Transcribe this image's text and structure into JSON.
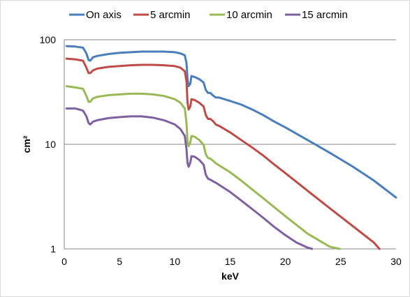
{
  "chart_data": {
    "type": "line",
    "title": "",
    "xlabel": "keV",
    "ylabel": "cm²",
    "xlim": [
      0,
      30
    ],
    "ylim": [
      1,
      100
    ],
    "y_scale": "log",
    "grid": "horizontal major only",
    "legend_position": "top",
    "x_ticks": [
      "0",
      "5",
      "10",
      "15",
      "20",
      "25",
      "30"
    ],
    "y_ticks": [
      "1",
      "10",
      "100"
    ],
    "series": [
      {
        "name": "On axis",
        "color": "#4a7ebb",
        "x": [
          0.2,
          1.0,
          1.7,
          2.0,
          2.2,
          2.35,
          2.6,
          3.0,
          4,
          5,
          6,
          7,
          8,
          9,
          10,
          10.5,
          10.9,
          11.05,
          11.15,
          11.25,
          11.4,
          11.5,
          11.8,
          12.2,
          12.6,
          12.8,
          13.0,
          13.2,
          13.5,
          13.7,
          14,
          15,
          16,
          17,
          18,
          19,
          20,
          22,
          24,
          26,
          28,
          30
        ],
        "y": [
          87,
          86,
          84,
          74,
          64,
          63,
          68,
          70,
          73,
          75,
          76,
          77,
          77,
          77,
          76,
          74,
          71,
          60,
          42,
          36,
          38,
          45,
          44,
          42,
          39,
          33,
          31,
          31,
          29,
          28,
          28,
          26,
          24,
          21.5,
          19,
          16.5,
          14.5,
          11,
          8.3,
          6.2,
          4.5,
          3.1
        ]
      },
      {
        "name": "5 arcmin",
        "color": "#be4b48",
        "x": [
          0.2,
          1.0,
          1.7,
          2.0,
          2.2,
          2.35,
          2.6,
          3.0,
          4,
          5,
          6,
          7,
          8,
          9,
          10,
          10.5,
          10.9,
          11.05,
          11.15,
          11.25,
          11.4,
          11.5,
          11.8,
          12.2,
          12.6,
          12.8,
          13.0,
          13.2,
          13.5,
          13.7,
          14,
          15,
          16,
          17,
          18,
          19,
          20,
          22,
          24,
          26,
          28,
          28.5
        ],
        "y": [
          66,
          65,
          63,
          54,
          48,
          48,
          51,
          53,
          55,
          56,
          57,
          57.5,
          57.5,
          57,
          56,
          54,
          50,
          40,
          25,
          21.5,
          23,
          27,
          26.5,
          25,
          23,
          19,
          17.5,
          17.5,
          16.5,
          15.5,
          15,
          13,
          11,
          9.3,
          7.8,
          6.4,
          5.3,
          3.6,
          2.45,
          1.68,
          1.15,
          1.0
        ]
      },
      {
        "name": "10 arcmin",
        "color": "#98b954",
        "x": [
          0.2,
          1.0,
          1.7,
          2.0,
          2.2,
          2.35,
          2.6,
          3.0,
          4,
          5,
          6,
          7,
          8,
          9,
          10,
          10.5,
          10.9,
          11.05,
          11.15,
          11.25,
          11.4,
          11.5,
          11.8,
          12.2,
          12.6,
          12.8,
          13.0,
          13.2,
          13.5,
          13.7,
          14,
          15,
          16,
          17,
          18,
          19,
          20,
          22,
          24,
          24.9
        ],
        "y": [
          36,
          35,
          34,
          29,
          25.5,
          25.5,
          27.5,
          28.5,
          29.5,
          30,
          30.5,
          30.5,
          30,
          29,
          27,
          25,
          22,
          16,
          10.5,
          9.6,
          10.5,
          12,
          11.8,
          11,
          9.9,
          8,
          7.4,
          7.3,
          6.9,
          6.6,
          6.3,
          5.4,
          4.5,
          3.7,
          3.05,
          2.5,
          2.05,
          1.4,
          1.05,
          1.0
        ]
      },
      {
        "name": "15 arcmin",
        "color": "#7d60a0",
        "x": [
          0.2,
          1.0,
          1.7,
          2.0,
          2.2,
          2.35,
          2.6,
          3.0,
          4,
          5,
          6,
          7,
          8,
          9,
          10,
          10.5,
          10.9,
          11.05,
          11.15,
          11.25,
          11.4,
          11.5,
          11.8,
          12.2,
          12.6,
          12.8,
          13.0,
          13.2,
          13.5,
          13.7,
          14,
          15,
          16,
          17,
          18,
          19,
          20,
          21,
          22,
          22.4
        ],
        "y": [
          22,
          22,
          21,
          18.5,
          16,
          15.5,
          16.5,
          17,
          17.8,
          18.2,
          18.5,
          18.5,
          18,
          17,
          15.5,
          14,
          12,
          9,
          6.6,
          6.1,
          6.7,
          7.7,
          7.6,
          7.1,
          6.4,
          5.1,
          4.7,
          4.6,
          4.4,
          4.3,
          4.1,
          3.5,
          2.9,
          2.4,
          1.98,
          1.62,
          1.35,
          1.15,
          1.03,
          1.0
        ]
      }
    ]
  }
}
